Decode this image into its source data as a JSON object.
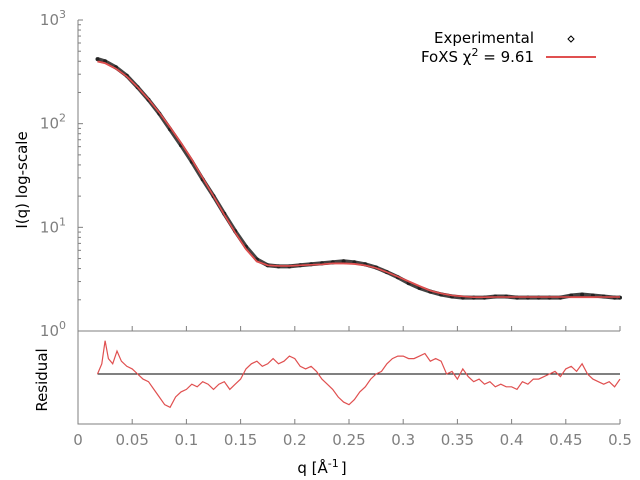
{
  "chart_data": [
    {
      "type": "line",
      "panel": "main",
      "xlabel": "",
      "ylabel": "I(q) log-scale",
      "yscale": "log",
      "xlim": [
        0,
        0.5
      ],
      "ylim": [
        1,
        1000
      ],
      "y_tick_labels": [
        {
          "base": "10",
          "exp": "0",
          "value": 1
        },
        {
          "base": "10",
          "exp": "1",
          "value": 10
        },
        {
          "base": "10",
          "exp": "2",
          "value": 100
        },
        {
          "base": "10",
          "exp": "3",
          "value": 1000
        }
      ],
      "grid": false,
      "legend_position": "top-right",
      "legend": {
        "experimental": "Experimental",
        "fit_prefix": "FoXS χ",
        "fit_sup": "2",
        "fit_suffix": " = 9.61"
      },
      "series": [
        {
          "name": "Experimental",
          "style": "points",
          "color": "#222222",
          "x": [
            0.018,
            0.025,
            0.035,
            0.045,
            0.055,
            0.065,
            0.075,
            0.085,
            0.095,
            0.105,
            0.115,
            0.125,
            0.135,
            0.145,
            0.155,
            0.165,
            0.175,
            0.185,
            0.195,
            0.205,
            0.215,
            0.225,
            0.235,
            0.245,
            0.255,
            0.265,
            0.275,
            0.285,
            0.295,
            0.305,
            0.315,
            0.325,
            0.335,
            0.345,
            0.355,
            0.365,
            0.375,
            0.385,
            0.395,
            0.405,
            0.415,
            0.425,
            0.435,
            0.445,
            0.455,
            0.465,
            0.475,
            0.485,
            0.495,
            0.5
          ],
          "y": [
            420,
            400,
            350,
            290,
            225,
            170,
            125,
            88,
            62,
            43,
            29,
            20,
            13.5,
            9.2,
            6.5,
            4.9,
            4.3,
            4.2,
            4.2,
            4.3,
            4.4,
            4.5,
            4.6,
            4.7,
            4.6,
            4.4,
            4.1,
            3.7,
            3.3,
            2.9,
            2.6,
            2.4,
            2.25,
            2.15,
            2.1,
            2.1,
            2.1,
            2.15,
            2.15,
            2.1,
            2.1,
            2.1,
            2.1,
            2.1,
            2.2,
            2.25,
            2.2,
            2.15,
            2.1,
            2.1
          ]
        },
        {
          "name": "FoXS χ2 = 9.61",
          "style": "line",
          "color": "#e05050",
          "x": [
            0.018,
            0.025,
            0.035,
            0.045,
            0.055,
            0.065,
            0.075,
            0.085,
            0.095,
            0.105,
            0.115,
            0.125,
            0.135,
            0.145,
            0.155,
            0.165,
            0.175,
            0.185,
            0.195,
            0.205,
            0.215,
            0.225,
            0.235,
            0.245,
            0.255,
            0.265,
            0.275,
            0.285,
            0.295,
            0.305,
            0.315,
            0.325,
            0.335,
            0.345,
            0.355,
            0.365,
            0.375,
            0.385,
            0.395,
            0.405,
            0.415,
            0.425,
            0.435,
            0.445,
            0.455,
            0.465,
            0.475,
            0.485,
            0.495,
            0.5
          ],
          "y": [
            400,
            385,
            340,
            285,
            225,
            172,
            128,
            92,
            65,
            45,
            30,
            20,
            13.2,
            8.9,
            6.2,
            4.7,
            4.3,
            4.25,
            4.25,
            4.3,
            4.35,
            4.4,
            4.5,
            4.5,
            4.45,
            4.3,
            4.05,
            3.7,
            3.35,
            3.0,
            2.7,
            2.45,
            2.3,
            2.2,
            2.15,
            2.12,
            2.12,
            2.13,
            2.13,
            2.13,
            2.13,
            2.13,
            2.13,
            2.13,
            2.13,
            2.13,
            2.13,
            2.13,
            2.13,
            2.13
          ]
        }
      ]
    },
    {
      "type": "line",
      "panel": "residual",
      "xlabel": "q [Å⁻¹]",
      "x_label_main": "q [Å",
      "x_label_sup": "-1",
      "x_label_end": "]",
      "ylabel": "Residual",
      "xlim": [
        0,
        0.5
      ],
      "ylim": [
        -1.7,
        1.7
      ],
      "x_ticks": [
        0,
        0.05,
        0.1,
        0.15,
        0.2,
        0.25,
        0.3,
        0.35,
        0.4,
        0.45,
        0.5
      ],
      "x_tick_labels": [
        "0",
        "0.05",
        "0.1",
        "0.15",
        "0.2",
        "0.25",
        "0.3",
        "0.35",
        "0.4",
        "0.45",
        "0.5"
      ],
      "grid": false,
      "series": [
        {
          "name": "",
          "color": "#e05050",
          "x": [
            0.018,
            0.022,
            0.025,
            0.028,
            0.032,
            0.036,
            0.04,
            0.045,
            0.05,
            0.055,
            0.06,
            0.065,
            0.07,
            0.075,
            0.08,
            0.085,
            0.09,
            0.095,
            0.1,
            0.105,
            0.11,
            0.115,
            0.12,
            0.125,
            0.13,
            0.135,
            0.14,
            0.145,
            0.15,
            0.155,
            0.16,
            0.165,
            0.17,
            0.175,
            0.18,
            0.185,
            0.19,
            0.195,
            0.2,
            0.205,
            0.21,
            0.215,
            0.22,
            0.225,
            0.23,
            0.235,
            0.24,
            0.245,
            0.25,
            0.255,
            0.26,
            0.265,
            0.27,
            0.275,
            0.28,
            0.285,
            0.29,
            0.295,
            0.3,
            0.305,
            0.31,
            0.315,
            0.32,
            0.325,
            0.33,
            0.335,
            0.34,
            0.345,
            0.35,
            0.355,
            0.36,
            0.365,
            0.37,
            0.375,
            0.38,
            0.385,
            0.39,
            0.395,
            0.4,
            0.405,
            0.41,
            0.415,
            0.42,
            0.425,
            0.43,
            0.435,
            0.44,
            0.445,
            0.45,
            0.455,
            0.46,
            0.465,
            0.47,
            0.475,
            0.48,
            0.485,
            0.49,
            0.495,
            0.5
          ],
          "y": [
            0.0,
            0.4,
            1.3,
            0.6,
            0.4,
            0.9,
            0.5,
            0.3,
            0.2,
            0.0,
            -0.2,
            -0.3,
            -0.6,
            -0.9,
            -1.2,
            -1.3,
            -0.9,
            -0.7,
            -0.6,
            -0.4,
            -0.5,
            -0.3,
            -0.4,
            -0.6,
            -0.4,
            -0.3,
            -0.6,
            -0.4,
            -0.2,
            0.2,
            0.4,
            0.5,
            0.3,
            0.4,
            0.6,
            0.4,
            0.5,
            0.7,
            0.6,
            0.3,
            0.2,
            0.3,
            0.1,
            -0.2,
            -0.4,
            -0.6,
            -0.9,
            -1.1,
            -1.2,
            -1.0,
            -0.7,
            -0.5,
            -0.2,
            0.0,
            0.1,
            0.4,
            0.6,
            0.7,
            0.7,
            0.6,
            0.6,
            0.7,
            0.8,
            0.5,
            0.6,
            0.5,
            0.0,
            0.1,
            -0.2,
            0.2,
            -0.1,
            -0.3,
            -0.2,
            -0.4,
            -0.3,
            -0.5,
            -0.4,
            -0.5,
            -0.5,
            -0.6,
            -0.3,
            -0.4,
            -0.2,
            -0.2,
            -0.1,
            0.0,
            0.1,
            -0.1,
            0.2,
            0.3,
            0.1,
            0.4,
            0.0,
            -0.2,
            -0.3,
            -0.4,
            -0.3,
            -0.5,
            -0.2
          ]
        },
        {
          "name": "",
          "color": "#000000",
          "x": [
            0.018,
            0.5
          ],
          "y": [
            0,
            0
          ]
        }
      ]
    }
  ]
}
